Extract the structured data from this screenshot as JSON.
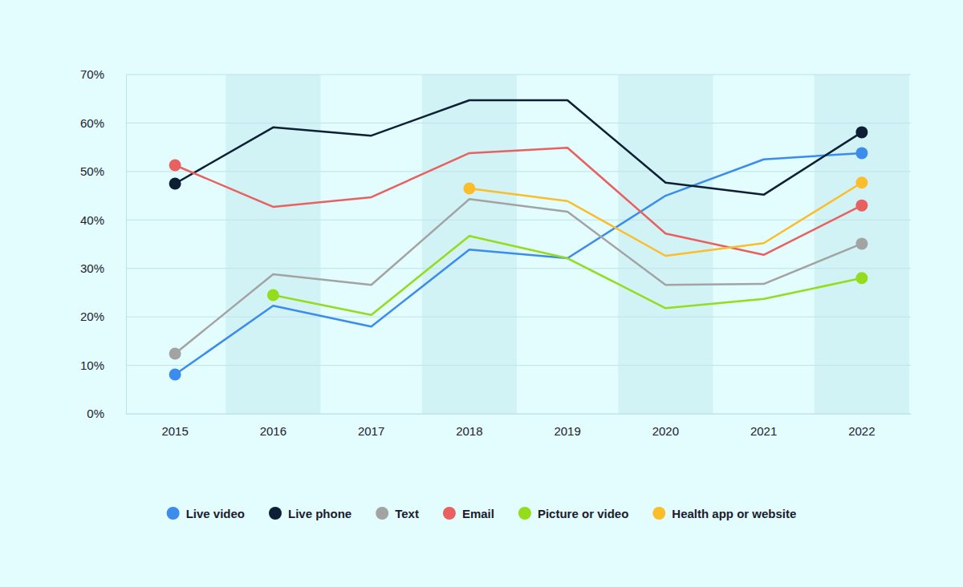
{
  "chart_data": {
    "type": "line",
    "categories": [
      "2015",
      "2016",
      "2017",
      "2018",
      "2019",
      "2020",
      "2021",
      "2022"
    ],
    "series": [
      {
        "name": "Live video",
        "color": "#3b8ced",
        "values": [
          8.1,
          22.3,
          18.0,
          33.9,
          32.1,
          45.0,
          52.5,
          53.8
        ]
      },
      {
        "name": "Live phone",
        "color": "#0d1f33",
        "values": [
          47.5,
          59.1,
          57.4,
          64.7,
          64.7,
          47.7,
          45.2,
          58.1
        ]
      },
      {
        "name": "Text",
        "color": "#a3a3a3",
        "values": [
          12.4,
          28.8,
          26.6,
          44.3,
          41.7,
          26.6,
          26.8,
          35.1
        ]
      },
      {
        "name": "Email",
        "color": "#e8605f",
        "values": [
          51.3,
          42.7,
          44.7,
          53.8,
          54.9,
          37.2,
          32.8,
          43.0
        ]
      },
      {
        "name": "Picture or video",
        "color": "#94dc1c",
        "values": [
          null,
          24.5,
          20.4,
          36.7,
          32.1,
          21.8,
          23.7,
          28.0
        ]
      },
      {
        "name": "Health app or website",
        "color": "#fbbd2a",
        "values": [
          null,
          null,
          null,
          46.5,
          43.9,
          32.6,
          35.2,
          47.7
        ]
      }
    ],
    "ylim": [
      0,
      70
    ],
    "yticks": [
      {
        "value": 0,
        "label": "0%"
      },
      {
        "value": 10,
        "label": "10%"
      },
      {
        "value": 20,
        "label": "20%"
      },
      {
        "value": 30,
        "label": "30%"
      },
      {
        "value": 40,
        "label": "40%"
      },
      {
        "value": 50,
        "label": "50%"
      },
      {
        "value": 60,
        "label": "60%"
      },
      {
        "value": 70,
        "label": "70%"
      }
    ],
    "grid": true,
    "marker": "circle",
    "legend": "bottom"
  }
}
